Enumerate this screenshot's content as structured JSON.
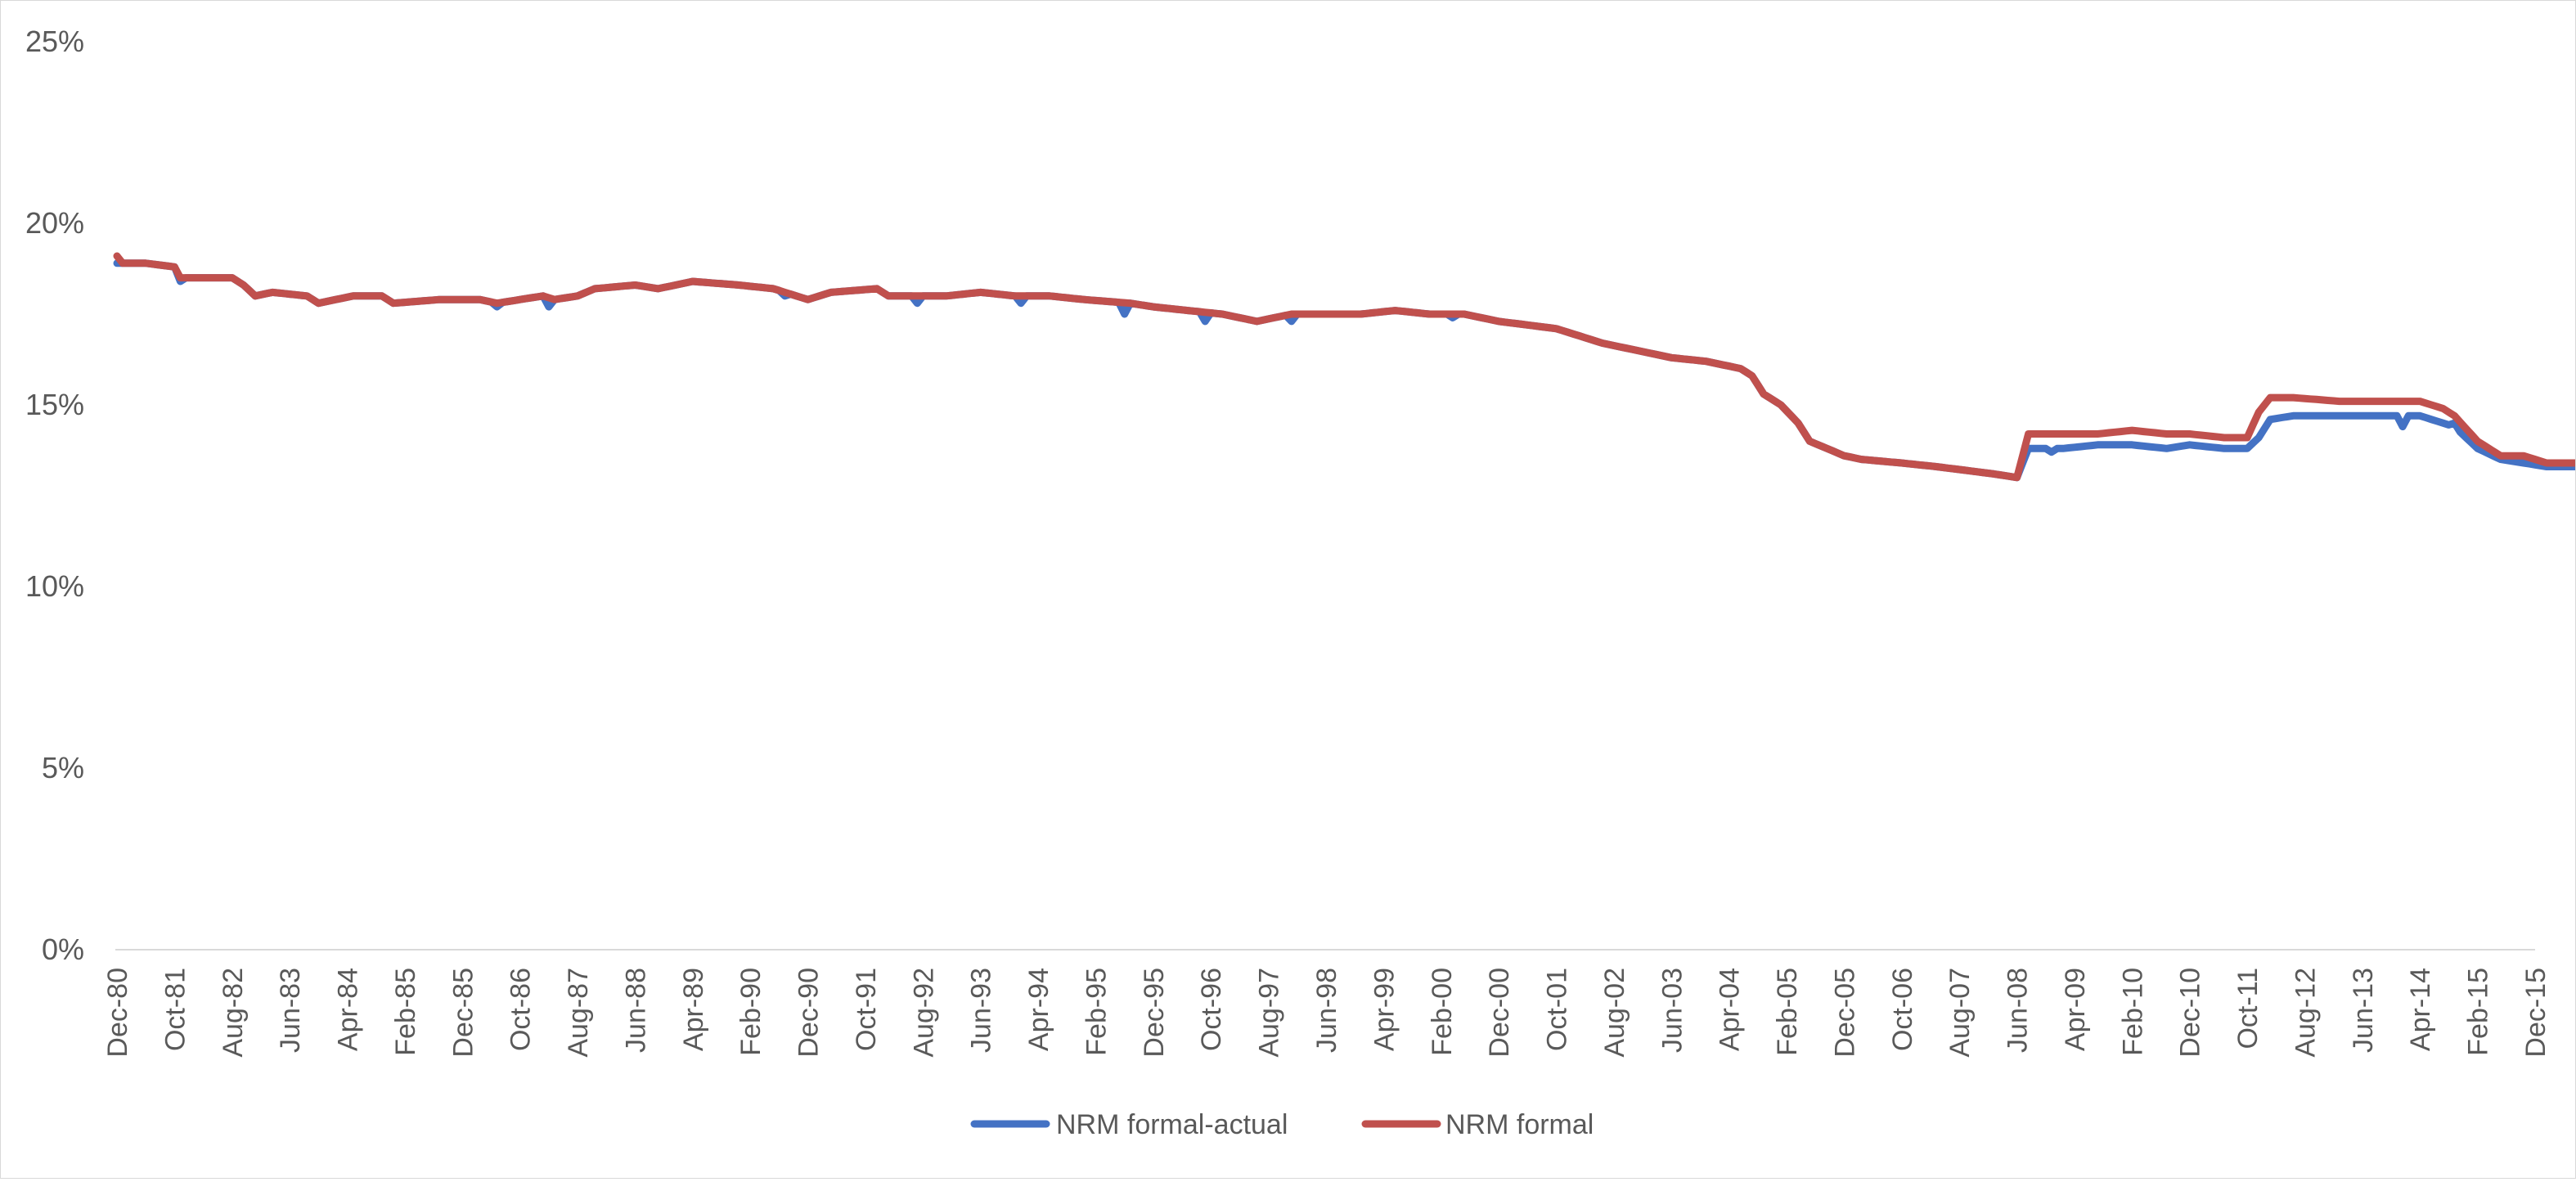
{
  "chart_data": {
    "type": "line",
    "title": "",
    "xlabel": "",
    "ylabel": "",
    "x_start": "Dec-80",
    "x_end": "Dec-15",
    "x_step_months": 1,
    "x_tick_labels": [
      "Dec-80",
      "Oct-81",
      "Aug-82",
      "Jun-83",
      "Apr-84",
      "Feb-85",
      "Dec-85",
      "Oct-86",
      "Aug-87",
      "Jun-88",
      "Apr-89",
      "Feb-90",
      "Dec-90",
      "Oct-91",
      "Aug-92",
      "Jun-93",
      "Apr-94",
      "Feb-95",
      "Dec-95",
      "Oct-96",
      "Aug-97",
      "Jun-98",
      "Apr-99",
      "Feb-00",
      "Dec-00",
      "Oct-01",
      "Aug-02",
      "Jun-03",
      "Apr-04",
      "Feb-05",
      "Dec-05",
      "Oct-06",
      "Aug-07",
      "Jun-08",
      "Apr-09",
      "Feb-10",
      "Dec-10",
      "Oct-11",
      "Aug-12",
      "Jun-13",
      "Apr-14",
      "Feb-15",
      "Dec-15"
    ],
    "y_ticks": [
      0,
      5,
      10,
      15,
      20,
      25
    ],
    "y_tick_labels": [
      "0%",
      "5%",
      "10%",
      "15%",
      "20%",
      "25%"
    ],
    "ylim": [
      0,
      25
    ],
    "y_unit": "%",
    "grid": false,
    "legend_position": "bottom",
    "series": [
      {
        "name": "NRM formal-actual",
        "color": "#4472c4",
        "anchors": [
          [
            0,
            18.9
          ],
          [
            5,
            18.9
          ],
          [
            10,
            18.8
          ],
          [
            11,
            18.5
          ],
          [
            20,
            18.5
          ],
          [
            22,
            18.3
          ],
          [
            24,
            18.0
          ],
          [
            27,
            18.1
          ],
          [
            33,
            18.0
          ],
          [
            35,
            17.8
          ],
          [
            38,
            17.9
          ],
          [
            41,
            18.0
          ],
          [
            46,
            18.0
          ],
          [
            48,
            17.8
          ],
          [
            56,
            17.9
          ],
          [
            63,
            17.9
          ],
          [
            66,
            17.8
          ],
          [
            70,
            17.9
          ],
          [
            74,
            18.0
          ],
          [
            76,
            17.9
          ],
          [
            80,
            18.0
          ],
          [
            83,
            18.2
          ],
          [
            90,
            18.3
          ],
          [
            94,
            18.2
          ],
          [
            100,
            18.4
          ],
          [
            108,
            18.3
          ],
          [
            114,
            18.2
          ],
          [
            118,
            18.0
          ],
          [
            120,
            17.9
          ],
          [
            124,
            18.1
          ],
          [
            132,
            18.2
          ],
          [
            134,
            18.0
          ],
          [
            144,
            18.0
          ],
          [
            150,
            18.1
          ],
          [
            156,
            18.0
          ],
          [
            162,
            18.0
          ],
          [
            168,
            17.9
          ],
          [
            176,
            17.8
          ],
          [
            180,
            17.7
          ],
          [
            186,
            17.6
          ],
          [
            192,
            17.5
          ],
          [
            198,
            17.3
          ],
          [
            204,
            17.5
          ],
          [
            210,
            17.5
          ],
          [
            216,
            17.5
          ],
          [
            222,
            17.6
          ],
          [
            228,
            17.5
          ],
          [
            234,
            17.5
          ],
          [
            240,
            17.3
          ],
          [
            245,
            17.2
          ],
          [
            250,
            17.1
          ],
          [
            254,
            16.9
          ],
          [
            258,
            16.7
          ],
          [
            264,
            16.5
          ],
          [
            270,
            16.3
          ],
          [
            276,
            16.2
          ],
          [
            282,
            16.0
          ],
          [
            284,
            15.8
          ],
          [
            286,
            15.3
          ],
          [
            289,
            15.0
          ],
          [
            292,
            14.5
          ],
          [
            294,
            14.0
          ],
          [
            297,
            13.8
          ],
          [
            300,
            13.6
          ],
          [
            303,
            13.5
          ],
          [
            310,
            13.4
          ],
          [
            316,
            13.3
          ],
          [
            321,
            13.2
          ],
          [
            326,
            13.1
          ],
          [
            330,
            13.0
          ],
          [
            332,
            13.8
          ],
          [
            338,
            13.8
          ],
          [
            344,
            13.9
          ],
          [
            350,
            13.9
          ],
          [
            356,
            13.8
          ],
          [
            360,
            13.9
          ],
          [
            366,
            13.8
          ],
          [
            370,
            13.8
          ],
          [
            372,
            14.1
          ],
          [
            374,
            14.6
          ],
          [
            378,
            14.7
          ],
          [
            386,
            14.7
          ],
          [
            392,
            14.7
          ],
          [
            400,
            14.7
          ],
          [
            404,
            14.5
          ],
          [
            406,
            14.4
          ],
          [
            410,
            13.8
          ],
          [
            414,
            13.5
          ],
          [
            418,
            13.4
          ],
          [
            422,
            13.3
          ],
          [
            426,
            13.3
          ],
          [
            430,
            13.3
          ],
          [
            434,
            13.4
          ],
          [
            444,
            13.5
          ],
          [
            452,
            13.6
          ],
          [
            456,
            13.6
          ],
          [
            460,
            13.7
          ],
          [
            464,
            13.7
          ],
          [
            468,
            14.1
          ],
          [
            472,
            14.3
          ],
          [
            478,
            14.4
          ],
          [
            484,
            14.6
          ],
          [
            486,
            14.9
          ],
          [
            492,
            14.9
          ],
          [
            498,
            14.9
          ],
          [
            504,
            15.0
          ],
          [
            508,
            15.1
          ],
          [
            514,
            15.1
          ],
          [
            520,
            15.1
          ],
          [
            522,
            15.1
          ],
          [
            526,
            15.2
          ],
          [
            528,
            15.2
          ]
        ],
        "dips": [
          [
            11,
            18.4
          ],
          [
            66,
            17.7
          ],
          [
            75,
            17.7
          ],
          [
            116,
            18.0
          ],
          [
            139,
            17.8
          ],
          [
            157,
            17.8
          ],
          [
            175,
            17.5
          ],
          [
            189,
            17.3
          ],
          [
            204,
            17.3
          ],
          [
            232,
            17.4
          ],
          [
            336,
            13.7
          ],
          [
            397,
            14.4
          ],
          [
            406,
            14.5
          ],
          [
            422,
            13.2
          ],
          [
            443,
            13.1
          ],
          [
            468,
            13.3
          ]
        ]
      },
      {
        "name": "NRM formal",
        "color": "#c0504d",
        "anchors": [
          [
            0,
            19.1
          ],
          [
            1,
            18.9
          ],
          [
            5,
            18.9
          ],
          [
            10,
            18.8
          ],
          [
            11,
            18.5
          ],
          [
            20,
            18.5
          ],
          [
            22,
            18.3
          ],
          [
            24,
            18.0
          ],
          [
            27,
            18.1
          ],
          [
            33,
            18.0
          ],
          [
            35,
            17.8
          ],
          [
            38,
            17.9
          ],
          [
            41,
            18.0
          ],
          [
            46,
            18.0
          ],
          [
            48,
            17.8
          ],
          [
            56,
            17.9
          ],
          [
            63,
            17.9
          ],
          [
            66,
            17.8
          ],
          [
            70,
            17.9
          ],
          [
            74,
            18.0
          ],
          [
            76,
            17.9
          ],
          [
            80,
            18.0
          ],
          [
            83,
            18.2
          ],
          [
            90,
            18.3
          ],
          [
            94,
            18.2
          ],
          [
            100,
            18.4
          ],
          [
            108,
            18.3
          ],
          [
            114,
            18.2
          ],
          [
            118,
            18.0
          ],
          [
            120,
            17.9
          ],
          [
            124,
            18.1
          ],
          [
            132,
            18.2
          ],
          [
            134,
            18.0
          ],
          [
            144,
            18.0
          ],
          [
            150,
            18.1
          ],
          [
            156,
            18.0
          ],
          [
            162,
            18.0
          ],
          [
            168,
            17.9
          ],
          [
            176,
            17.8
          ],
          [
            180,
            17.7
          ],
          [
            186,
            17.6
          ],
          [
            192,
            17.5
          ],
          [
            198,
            17.3
          ],
          [
            204,
            17.5
          ],
          [
            210,
            17.5
          ],
          [
            216,
            17.5
          ],
          [
            222,
            17.6
          ],
          [
            228,
            17.5
          ],
          [
            234,
            17.5
          ],
          [
            240,
            17.3
          ],
          [
            245,
            17.2
          ],
          [
            250,
            17.1
          ],
          [
            254,
            16.9
          ],
          [
            258,
            16.7
          ],
          [
            264,
            16.5
          ],
          [
            270,
            16.3
          ],
          [
            276,
            16.2
          ],
          [
            282,
            16.0
          ],
          [
            284,
            15.8
          ],
          [
            286,
            15.3
          ],
          [
            289,
            15.0
          ],
          [
            292,
            14.5
          ],
          [
            294,
            14.0
          ],
          [
            297,
            13.8
          ],
          [
            300,
            13.6
          ],
          [
            303,
            13.5
          ],
          [
            310,
            13.4
          ],
          [
            316,
            13.3
          ],
          [
            321,
            13.2
          ],
          [
            326,
            13.1
          ],
          [
            330,
            13.0
          ],
          [
            332,
            14.2
          ],
          [
            338,
            14.2
          ],
          [
            344,
            14.2
          ],
          [
            350,
            14.3
          ],
          [
            356,
            14.2
          ],
          [
            360,
            14.2
          ],
          [
            366,
            14.1
          ],
          [
            370,
            14.1
          ],
          [
            372,
            14.8
          ],
          [
            374,
            15.2
          ],
          [
            378,
            15.2
          ],
          [
            386,
            15.1
          ],
          [
            392,
            15.1
          ],
          [
            400,
            15.1
          ],
          [
            404,
            14.9
          ],
          [
            406,
            14.7
          ],
          [
            410,
            14.0
          ],
          [
            414,
            13.6
          ],
          [
            418,
            13.6
          ],
          [
            422,
            13.4
          ],
          [
            426,
            13.4
          ],
          [
            430,
            13.4
          ],
          [
            434,
            13.4
          ],
          [
            444,
            13.5
          ],
          [
            452,
            13.6
          ],
          [
            456,
            13.6
          ],
          [
            460,
            13.7
          ],
          [
            464,
            13.7
          ],
          [
            468,
            14.1
          ],
          [
            472,
            14.3
          ],
          [
            478,
            14.4
          ],
          [
            484,
            14.6
          ],
          [
            486,
            15.0
          ],
          [
            492,
            15.0
          ],
          [
            498,
            15.0
          ],
          [
            504,
            15.1
          ],
          [
            508,
            15.1
          ],
          [
            514,
            15.1
          ],
          [
            520,
            15.2
          ],
          [
            522,
            15.3
          ],
          [
            526,
            15.2
          ],
          [
            528,
            15.2
          ]
        ],
        "dips": []
      }
    ]
  }
}
